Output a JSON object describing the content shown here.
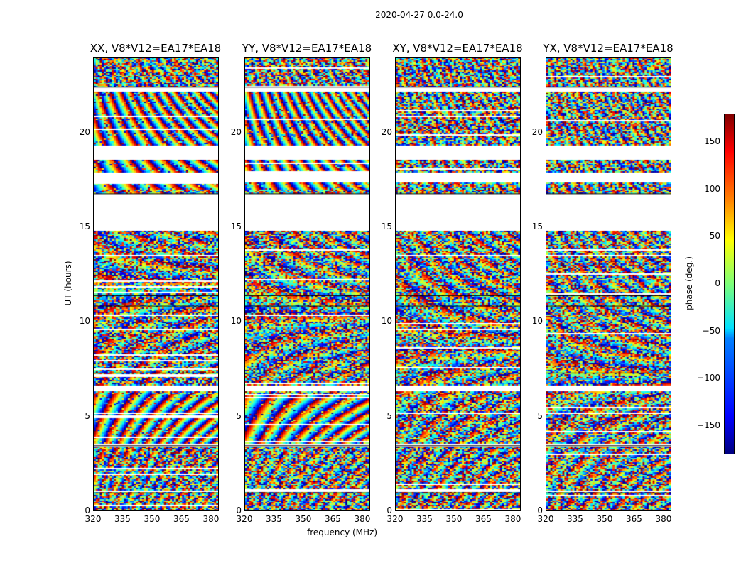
{
  "title": "2020-04-27 0.0-24.0",
  "colors": {
    "flagged": "#ffffff",
    "frame": "#000000"
  },
  "chart_data": {
    "type": "heatmap",
    "title": "2020-04-27 0.0-24.0",
    "xlabel": "frequency (MHz)",
    "ylabel": "UT (hours)",
    "colorbar_label": "phase (deg.)",
    "colormap": "jet",
    "clim": [
      -180,
      180
    ],
    "colorbar_ticks": [
      "150",
      "100",
      "50",
      "0",
      "−50",
      "−100",
      "−150"
    ],
    "colorbar_tick_values": [
      150,
      100,
      50,
      0,
      -50,
      -100,
      -150
    ],
    "xlim": [
      320,
      384
    ],
    "ylim": [
      0,
      24
    ],
    "x_ticks": [
      "320",
      "335",
      "350",
      "365",
      "380"
    ],
    "x_tick_values": [
      320,
      335,
      350,
      365,
      380
    ],
    "y_ticks": [
      "0",
      "5",
      "10",
      "15",
      "20"
    ],
    "y_tick_values": [
      0,
      5,
      10,
      15,
      20
    ],
    "flagged_time_ranges_hours": [
      [
        14.85,
        16.8
      ],
      [
        6.3,
        6.6
      ],
      [
        17.4,
        17.9
      ],
      [
        18.6,
        19.3
      ],
      [
        22.2,
        22.4
      ],
      [
        3.4,
        3.5
      ],
      [
        1.0,
        1.05
      ]
    ],
    "panels": [
      {
        "title": "XX, V8*V12=EA17*EA18"
      },
      {
        "title": "YY, V8*V12=EA17*EA18"
      },
      {
        "title": "XY, V8*V12=EA17*EA18"
      },
      {
        "title": "YX, V8*V12=EA17*EA18"
      }
    ]
  }
}
